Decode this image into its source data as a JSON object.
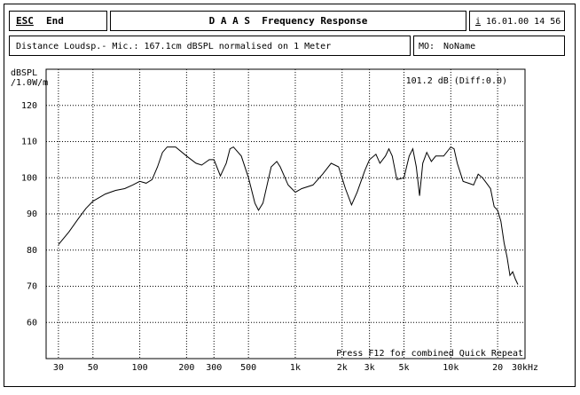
{
  "header": {
    "esc": "ESC",
    "end": "End",
    "title": "D A A S  Frequency Response",
    "info": "i",
    "datetime": "16.01.00 14 56",
    "distance": "Distance Loudsp.- Mic.: 167.1cm dBSPL normalised on 1 Meter",
    "mo_label": "MO:",
    "mo_name": "NoName"
  },
  "chart_data": {
    "type": "line",
    "y_label": [
      "dBSPL",
      "/1.0W/m"
    ],
    "annotation": "101.2 dB (Diff:0.0)",
    "footer_note": "Press F12 for combined Quick Repeat",
    "x_log": true,
    "grid": true,
    "xlim": [
      25,
      30000
    ],
    "xticks": [
      30,
      50,
      100,
      200,
      300,
      500,
      {
        "value": 1000,
        "label": "1k"
      },
      {
        "value": 2000,
        "label": "2k"
      },
      {
        "value": 3000,
        "label": "3k"
      },
      {
        "value": 5000,
        "label": "5k"
      },
      {
        "value": 10000,
        "label": "10k"
      },
      {
        "value": 20000,
        "label": "20"
      },
      {
        "value": 30000,
        "label": "30kHz"
      }
    ],
    "ylim": [
      50,
      130
    ],
    "yticks": [
      60,
      70,
      80,
      90,
      100,
      110,
      120
    ],
    "x": [
      30,
      35,
      40,
      45,
      50,
      60,
      70,
      80,
      90,
      100,
      110,
      120,
      130,
      140,
      150,
      170,
      200,
      230,
      250,
      280,
      300,
      330,
      360,
      380,
      400,
      450,
      500,
      550,
      580,
      620,
      700,
      760,
      800,
      900,
      1000,
      1100,
      1300,
      1500,
      1700,
      1900,
      2100,
      2300,
      2500,
      2800,
      3000,
      3300,
      3500,
      3800,
      4000,
      4200,
      4500,
      5000,
      5400,
      5700,
      6000,
      6300,
      6600,
      7000,
      7500,
      8000,
      9000,
      10000,
      10500,
      11000,
      12000,
      13000,
      14000,
      15000,
      16000,
      17000,
      18000,
      19000,
      20000,
      21000,
      22000,
      23000,
      24000,
      25000,
      26000,
      27000
    ],
    "series": [
      {
        "color": "#000000",
        "values": [
          81.5,
          85,
          88.5,
          91.5,
          93.5,
          95.5,
          96.5,
          97,
          98,
          99,
          98.5,
          99.5,
          103,
          107,
          108.5,
          108.5,
          106,
          104,
          103.5,
          105,
          105,
          100.5,
          104,
          108,
          108.5,
          106,
          100,
          93,
          91,
          93,
          103,
          104.5,
          103,
          98,
          96,
          97,
          98,
          101,
          104,
          103,
          97,
          92.5,
          96,
          102,
          105,
          106.5,
          104,
          106,
          108,
          106,
          99.5,
          100,
          106,
          108,
          103,
          95,
          104,
          107,
          104.5,
          106,
          106,
          108.5,
          108,
          104,
          99,
          98.5,
          98,
          101,
          100,
          98.5,
          97,
          92,
          91,
          88,
          82,
          78,
          73,
          74,
          72,
          70.5
        ]
      }
    ]
  }
}
